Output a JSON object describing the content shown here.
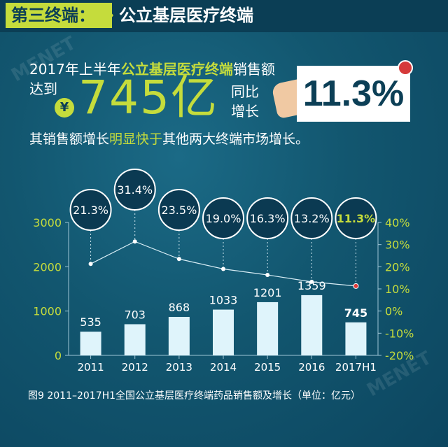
{
  "header": {
    "tag": "第三终端：",
    "title": "公立基层医疗终端"
  },
  "headline": {
    "line1_pre": "2017年上半年",
    "line1_highlight": "公立基层医疗终端",
    "line1_post": "销售额",
    "line2": "达到",
    "currency_symbol": "¥",
    "sales_value": "745亿",
    "yoy_label_1": "同比",
    "yoy_label_2": "增长",
    "yoy_value": "11.3%"
  },
  "subline": {
    "pre": "其销售额增长",
    "highlight": "明显快于",
    "post": "其他两大终端市场增长。"
  },
  "caption": "图9  2011–2017H1全国公立基层医疗终端药品销售额及增长（单位：亿元）",
  "watermark": "MENET",
  "colors": {
    "background": "#0f4f6a",
    "accent": "#c5dc3c",
    "bar": "#dff4fb",
    "bubble": "#0b3a52",
    "line": "#d9eef6",
    "highlight_point": "#e03a3a"
  },
  "chart_data": {
    "type": "bar",
    "categories": [
      "2011",
      "2012",
      "2013",
      "2014",
      "2015",
      "2016",
      "2017H1"
    ],
    "series": [
      {
        "values": [
          535,
          703,
          868,
          1033,
          1201,
          1359,
          745
        ],
        "axis": "left"
      },
      {
        "values": [
          21.3,
          31.4,
          23.5,
          19.0,
          16.3,
          13.2,
          11.3
        ],
        "axis": "right",
        "type": "line"
      }
    ],
    "bar_labels": [
      "535",
      "703",
      "868",
      "1033",
      "1201",
      "1359",
      "745"
    ],
    "growth_labels": [
      "21.3%",
      "31.4%",
      "23.5%",
      "19.0%",
      "16.3%",
      "13.2%",
      "11.3%"
    ],
    "left_axis": {
      "ylim": [
        0,
        3000
      ],
      "ticks": [
        "0",
        "1000",
        "2000",
        "3000"
      ]
    },
    "right_axis": {
      "ylim": [
        -20,
        40
      ],
      "ticks": [
        "-20%",
        "-10%",
        "0%",
        "10%",
        "20%",
        "30%",
        "40%"
      ]
    },
    "highlight_index": 6
  }
}
